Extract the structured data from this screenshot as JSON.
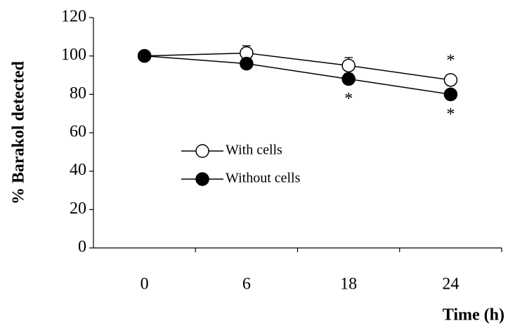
{
  "chart_data": {
    "type": "line",
    "x_label": "Time (h)",
    "y_label": "% Barakol detected",
    "categories": [
      "0",
      "6",
      "18",
      "24"
    ],
    "series": [
      {
        "name": "With cells",
        "color": "#ffffff",
        "values": [
          100,
          101.5,
          95,
          87.5
        ],
        "errors": [
          null,
          3.8,
          4.2,
          null
        ]
      },
      {
        "name": "Without cells",
        "color": "#000000",
        "values": [
          100,
          96,
          88,
          80
        ]
      }
    ],
    "significance": [
      {
        "series": "With cells",
        "category": "24",
        "side": "above",
        "label": "*"
      },
      {
        "series": "Without cells",
        "category": "18",
        "side": "below",
        "label": "*"
      },
      {
        "series": "Without cells",
        "category": "24",
        "side": "below",
        "label": "*"
      }
    ],
    "ylim": [
      0,
      120
    ],
    "yticks": [
      0,
      20,
      40,
      60,
      80,
      100,
      120
    ]
  }
}
